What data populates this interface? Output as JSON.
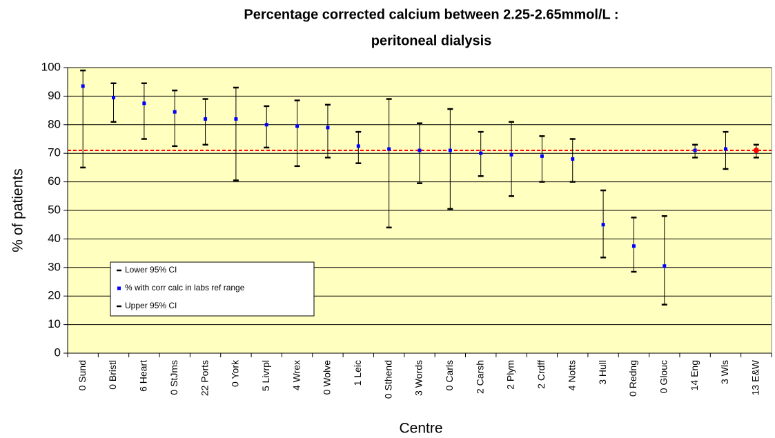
{
  "chart_data": {
    "type": "errorbar",
    "title": [
      "Percentage corrected calcium between 2.25-2.65mmol/L :",
      "peritoneal dialysis"
    ],
    "x_label": "Centre",
    "y_label": "% of patients",
    "categories": [
      "0 Sund",
      "0 Bristl",
      "6 Heart",
      "0 StJms",
      "22 Ports",
      "0 York",
      "5 Livrpl",
      "4 Wrex",
      "0 Wolve",
      "1 Leic",
      "0 Sthend",
      "3 Words",
      "0 Carls",
      "2 Carsh",
      "2 Plym",
      "2 Crdff",
      "4 Notts",
      "3 Hull",
      "0 Redng",
      "0 Glouc",
      "14 Eng",
      "3 Wls",
      "13 E&W"
    ],
    "series": [
      {
        "name": "Lower 95% CI",
        "color": "#000000",
        "values": [
          65,
          81,
          75,
          72.5,
          73,
          60.5,
          72,
          65.5,
          68.5,
          66.5,
          44,
          59.5,
          50.5,
          62,
          55,
          60,
          60,
          33.5,
          28.5,
          17,
          68.5,
          64.5,
          68.5
        ]
      },
      {
        "name": "% with corr calc in labs ref range",
        "color": "#0000ff",
        "colors": [
          "#0000ff",
          "#0000ff",
          "#0000ff",
          "#0000ff",
          "#0000ff",
          "#0000ff",
          "#0000ff",
          "#0000ff",
          "#0000ff",
          "#0000ff",
          "#0000ff",
          "#0000ff",
          "#0000ff",
          "#0000ff",
          "#0000ff",
          "#0000ff",
          "#0000ff",
          "#0000ff",
          "#0000ff",
          "#0000ff",
          "#0000ff",
          "#0000ff",
          "#ff0000"
        ],
        "values": [
          93.5,
          89.5,
          87.5,
          84.5,
          82,
          82,
          80,
          79.5,
          79,
          72.5,
          71.5,
          71,
          71,
          70,
          69.5,
          69,
          68,
          45,
          37.5,
          30.5,
          71,
          71.5,
          71
        ]
      },
      {
        "name": "Upper 95% CI",
        "color": "#000000",
        "values": [
          99,
          94.5,
          94.5,
          92,
          89,
          93,
          86.5,
          88.5,
          87,
          77.5,
          89,
          80.5,
          85.5,
          77.5,
          81,
          76,
          75,
          57,
          47.5,
          48,
          73,
          77.5,
          73
        ]
      }
    ],
    "reference_line": {
      "value": 71,
      "color": "#ff0000"
    },
    "ylim": [
      0,
      100
    ],
    "yticks": [
      0,
      10,
      20,
      30,
      40,
      50,
      60,
      70,
      80,
      90,
      100
    ],
    "grid": true,
    "background": "#ffffc0",
    "legend": "lower-left"
  }
}
